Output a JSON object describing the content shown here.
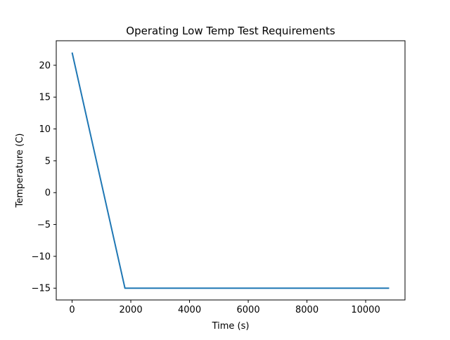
{
  "chart_data": {
    "type": "line",
    "title": "Operating Low Temp Test Requirements",
    "xlabel": "Time (s)",
    "ylabel": "Temperature (C)",
    "xlim": [
      -540,
      11340
    ],
    "ylim": [
      -16.85,
      23.85
    ],
    "xticks": [
      0,
      2000,
      4000,
      6000,
      8000,
      10000
    ],
    "xtick_labels": [
      "0",
      "2000",
      "4000",
      "6000",
      "8000",
      "10000"
    ],
    "yticks": [
      -15,
      -10,
      -5,
      0,
      5,
      10,
      15,
      20
    ],
    "ytick_labels": [
      "−15",
      "−10",
      "−5",
      "0",
      "5",
      "10",
      "15",
      "20"
    ],
    "grid": false,
    "series": [
      {
        "color": "#1f77b4",
        "x": [
          0,
          1800,
          10800
        ],
        "y": [
          22,
          -15,
          -15
        ]
      }
    ]
  }
}
